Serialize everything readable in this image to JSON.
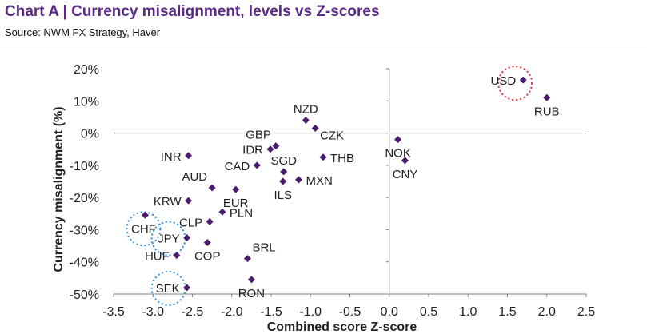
{
  "header": {
    "title": "Chart A | Currency misalignment, levels vs Z-scores",
    "source": "Source: NWM FX Strategy, Haver"
  },
  "chart_data": {
    "type": "scatter",
    "title": "Chart A | Currency misalignment, levels vs Z-scores",
    "xlabel": "Combined score Z-score",
    "ylabel": "Currency misalignment (%)",
    "xlim": [
      -3.5,
      2.5
    ],
    "ylim": [
      -50,
      20
    ],
    "xticks": [
      -3.5,
      -3.0,
      -2.5,
      -2.0,
      -1.5,
      -1.0,
      -0.5,
      0.0,
      0.5,
      1.0,
      1.5,
      2.0,
      2.5
    ],
    "xtick_labels": [
      "-3.5",
      "-3.0",
      "-2.5",
      "-2.0",
      "-1.5",
      "-1.0",
      "-0.5",
      "0.0",
      "0.5",
      "1.0",
      "1.5",
      "2.0",
      "2.5"
    ],
    "yticks": [
      20,
      10,
      0,
      -10,
      -20,
      -30,
      -40,
      -50
    ],
    "ytick_labels": [
      "20%",
      "10%",
      "0%",
      "-10%",
      "-20%",
      "-30%",
      "-40%",
      "-50%"
    ],
    "marker_color": "#4b1c6e",
    "highlight_red": "#e0313b",
    "highlight_blue": "#2f8fd6",
    "points": [
      {
        "label": "USD",
        "x": 1.7,
        "y": 16.5,
        "anchor": "left",
        "highlight": "red"
      },
      {
        "label": "RUB",
        "x": 2.0,
        "y": 11.0,
        "anchor": "below"
      },
      {
        "label": "NZD",
        "x": -1.06,
        "y": 4.0,
        "anchor": "above"
      },
      {
        "label": "CZK",
        "x": -0.94,
        "y": 1.5,
        "anchor": "right-below"
      },
      {
        "label": "GBP",
        "x": -1.44,
        "y": -4.0,
        "anchor": "above-left"
      },
      {
        "label": "IDR",
        "x": -1.51,
        "y": -5.0,
        "anchor": "left"
      },
      {
        "label": "CAD",
        "x": -1.68,
        "y": -10.0,
        "anchor": "left"
      },
      {
        "label": "THB",
        "x": -0.84,
        "y": -7.5,
        "anchor": "right"
      },
      {
        "label": "NOK",
        "x": 0.11,
        "y": -2.0,
        "anchor": "below"
      },
      {
        "label": "CNY",
        "x": 0.2,
        "y": -8.5,
        "anchor": "below"
      },
      {
        "label": "INR",
        "x": -2.55,
        "y": -7.0,
        "anchor": "left"
      },
      {
        "label": "SGD",
        "x": -1.34,
        "y": -12.0,
        "anchor": "above"
      },
      {
        "label": "ILS",
        "x": -1.35,
        "y": -15.0,
        "anchor": "below"
      },
      {
        "label": "MXN",
        "x": -1.15,
        "y": -14.5,
        "anchor": "right"
      },
      {
        "label": "AUD",
        "x": -2.25,
        "y": -17.0,
        "anchor": "above-left"
      },
      {
        "label": "EUR",
        "x": -1.95,
        "y": -17.5,
        "anchor": "below"
      },
      {
        "label": "KRW",
        "x": -2.55,
        "y": -21.0,
        "anchor": "left"
      },
      {
        "label": "CLP",
        "x": -2.28,
        "y": -27.5,
        "anchor": "left"
      },
      {
        "label": "PLN",
        "x": -2.12,
        "y": -24.5,
        "anchor": "right"
      },
      {
        "label": "CHF",
        "x": -3.1,
        "y": -25.5,
        "anchor": "below-left",
        "highlight": "blue"
      },
      {
        "label": "JPY",
        "x": -2.57,
        "y": -32.5,
        "anchor": "left",
        "highlight": "blue"
      },
      {
        "label": "COP",
        "x": -2.31,
        "y": -34.0,
        "anchor": "below"
      },
      {
        "label": "HUF",
        "x": -2.7,
        "y": -38.0,
        "anchor": "left"
      },
      {
        "label": "BRL",
        "x": -1.8,
        "y": -39.0,
        "anchor": "above-right"
      },
      {
        "label": "RON",
        "x": -1.75,
        "y": -45.5,
        "anchor": "below"
      },
      {
        "label": "SEK",
        "x": -2.57,
        "y": -48.0,
        "anchor": "left",
        "highlight": "blue"
      }
    ]
  }
}
